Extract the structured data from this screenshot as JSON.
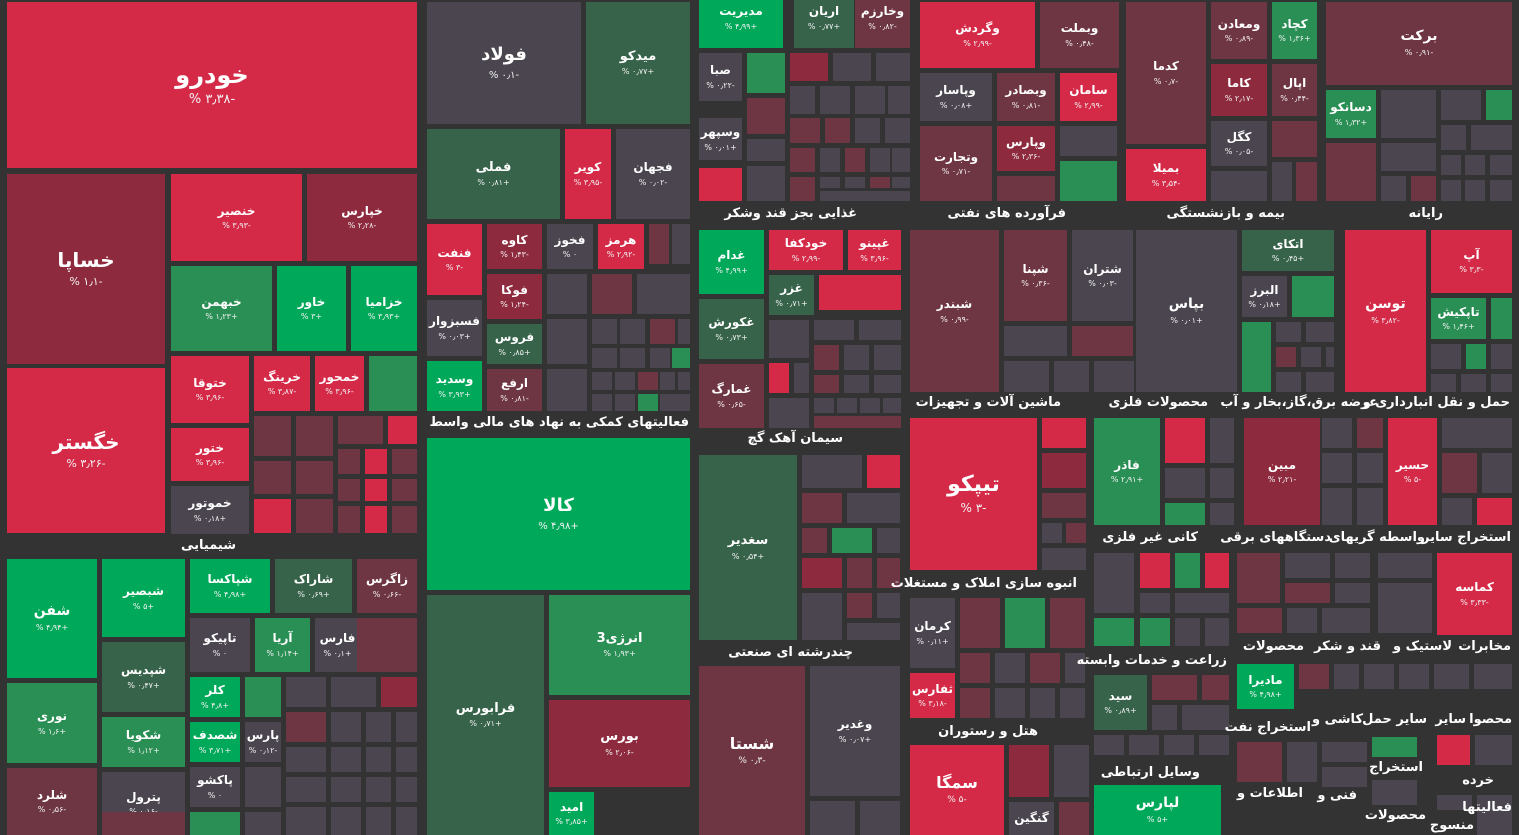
{
  "chart_data": {
    "type": "treemap",
    "colors": {
      "strong_pos": "#00a85a",
      "mid_pos": "#2a8f55",
      "weak_pos": "#36634a",
      "neutral": "#4a454e",
      "weak_neg": "#6e3543",
      "mid_neg": "#8e2a3e",
      "strong_neg": "#d42a48"
    },
    "sectors": [
      "غذایی بجز قند وشکر",
      "فرآورده های نفتی",
      "بیمه و بازنشستگی",
      "رایانه",
      "فعالیتهای کمکی به نهاد های مالی واسط",
      "سیمان آهک گچ",
      "ماشین آلات و تجهیزات",
      "محصولات فلزی",
      "عرضه برق،گاز،بخار و آب",
      "حمل و نقل انبارداری و",
      "شیمیایی",
      "انبوه سازی املاک و مستغلات",
      "کانی غیر فلزی",
      "دستگاههای برقی",
      "واسطه گریهای",
      "استخراج سایر",
      "چندرشته ای صنعتی",
      "زراعت و خدمات وابسته",
      "محصولات",
      "قند و شکر",
      "لاستیک و",
      "مخابرات",
      "هتل و رستوران",
      "استخراج نفت",
      "کاشی و",
      "سایر حمل",
      "سایر",
      "محصوا",
      "وسایل ارتباطی",
      "استخراج",
      "اطلاعات و",
      "فنی و",
      "خرده",
      "فعالیتها",
      "محصولات",
      "منسوج"
    ],
    "stocks": [
      {
        "name": "خودرو",
        "change": "-۳٫۳۸ %"
      },
      {
        "name": "خساپا",
        "change": "-۱٫۱ %"
      },
      {
        "name": "خگستر",
        "change": "-۳٫۲۶ %"
      },
      {
        "name": "خنصیر",
        "change": "-۳٫۹۳ %"
      },
      {
        "name": "خپارس",
        "change": "-۲٫۲۸ %"
      },
      {
        "name": "خبهمن",
        "change": "+۱٫۲۳ %"
      },
      {
        "name": "خاور",
        "change": "+۳ %"
      },
      {
        "name": "خزامیا",
        "change": "+۳٫۹۳ %"
      },
      {
        "name": "ختوقا",
        "change": "-۳٫۹۶ %"
      },
      {
        "name": "خرینگ",
        "change": "-۳٫۸۷ %"
      },
      {
        "name": "خمحور",
        "change": "-۳٫۹۶ %"
      },
      {
        "name": "ختور",
        "change": "-۳٫۹۶ %"
      },
      {
        "name": "خموتور",
        "change": "+۰٫۱۸ %"
      },
      {
        "name": "فولاد",
        "change": "-۰٫۱ %"
      },
      {
        "name": "میدکو",
        "change": "+۰٫۷۷ %"
      },
      {
        "name": "فملی",
        "change": "+۰٫۸۱ %"
      },
      {
        "name": "کویر",
        "change": "-۳٫۹۵ %"
      },
      {
        "name": "فجهان",
        "change": "-۰٫۰۲ %"
      },
      {
        "name": "فنفت",
        "change": "-۳ %"
      },
      {
        "name": "کاوه",
        "change": "-۱٫۴۳ %"
      },
      {
        "name": "فخوز",
        "change": "۰ %"
      },
      {
        "name": "هرمز",
        "change": "-۲٫۹۲ %"
      },
      {
        "name": "فوکا",
        "change": "-۱٫۲۴ %"
      },
      {
        "name": "فسبزوار",
        "change": "+۰٫۰۳ %"
      },
      {
        "name": "فروس",
        "change": "+۰٫۸۵ %"
      },
      {
        "name": "وسدید",
        "change": "+۳٫۹۳ %"
      },
      {
        "name": "ارفع",
        "change": "-۰٫۸۱ %"
      },
      {
        "name": "مدیریت",
        "change": "+۴٫۹۹ %"
      },
      {
        "name": "اریان",
        "change": "+۰٫۷۷ %"
      },
      {
        "name": "وخارزم",
        "change": "-۰٫۸۲ %"
      },
      {
        "name": "صبا",
        "change": "-۰٫۲۲ %"
      },
      {
        "name": "وسپهر",
        "change": "+۰٫۰۱ %"
      },
      {
        "name": "وگردش",
        "change": "-۲٫۹۹ %"
      },
      {
        "name": "وبملت",
        "change": "-۰٫۴۸ %"
      },
      {
        "name": "وپاسار",
        "change": "+۰٫۰۸ %"
      },
      {
        "name": "وبصادر",
        "change": "-۰٫۸۱ %"
      },
      {
        "name": "سامان",
        "change": "-۲٫۹۹ %"
      },
      {
        "name": "وتجارت",
        "change": "-۰٫۷۱ %"
      },
      {
        "name": "وپارس",
        "change": "-۲٫۳۶ %"
      },
      {
        "name": "کدما",
        "change": "-۰٫۷ %"
      },
      {
        "name": "بمیلا",
        "change": "-۳٫۵۴ %"
      },
      {
        "name": "ومعادن",
        "change": "-۰٫۸۹ %"
      },
      {
        "name": "کچاد",
        "change": "+۱٫۳۶ %"
      },
      {
        "name": "کاما",
        "change": "-۲٫۱۷ %"
      },
      {
        "name": "اپال",
        "change": "-۰٫۴۴ %"
      },
      {
        "name": "کگل",
        "change": "-۰٫۰۵ %"
      },
      {
        "name": "برکت",
        "change": "-۰٫۹۱ %"
      },
      {
        "name": "دسانکو",
        "change": "+۱٫۳۲ %"
      },
      {
        "name": "غدام",
        "change": "+۴٫۹۹ %"
      },
      {
        "name": "خودکفا",
        "change": "-۲٫۹۹ %"
      },
      {
        "name": "غپینو",
        "change": "-۳٫۹۶ %"
      },
      {
        "name": "غزر",
        "change": "+۰٫۷۱ %"
      },
      {
        "name": "غکورش",
        "change": "+۰٫۷۳ %"
      },
      {
        "name": "غمارگ",
        "change": "-۰٫۶۵ %"
      },
      {
        "name": "شبندر",
        "change": "-۰٫۹۹ %"
      },
      {
        "name": "شپنا",
        "change": "-۰٫۳۶ %"
      },
      {
        "name": "شتران",
        "change": "-۰٫۰۳ %"
      },
      {
        "name": "بپاس",
        "change": "+۰٫۰۱ %"
      },
      {
        "name": "اتکای",
        "change": "+۰٫۴۵ %"
      },
      {
        "name": "البرز",
        "change": "+۰٫۱۸ %"
      },
      {
        "name": "توسن",
        "change": "-۳٫۸۲ %"
      },
      {
        "name": "آپ",
        "change": "-۳٫۳ %"
      },
      {
        "name": "تاپکیش",
        "change": "+۱٫۴۶ %"
      },
      {
        "name": "کالا",
        "change": "+۴٫۹۸ %"
      },
      {
        "name": "فرابورس",
        "change": "+۰٫۷۱ %"
      },
      {
        "name": "انرژی3",
        "change": "+۱٫۹۳ %"
      },
      {
        "name": "بورس",
        "change": "-۲٫۰۶ %"
      },
      {
        "name": "امید",
        "change": "+۳٫۸۵ %"
      },
      {
        "name": "سغدیر",
        "change": "+۰٫۵۴ %"
      },
      {
        "name": "شستا",
        "change": "-۰٫۳ %"
      },
      {
        "name": "وغدیر",
        "change": "+۰٫۰۷ %"
      },
      {
        "name": "تیپکو",
        "change": "-۳ %"
      },
      {
        "name": "فاذر",
        "change": "+۲٫۹۱ %"
      },
      {
        "name": "مبین",
        "change": "-۲٫۲۱ %"
      },
      {
        "name": "حسیر",
        "change": "-۵ %"
      },
      {
        "name": "کرمان",
        "change": "+۰٫۱۱ %"
      },
      {
        "name": "ثفارس",
        "change": "-۳٫۱۸ %"
      },
      {
        "name": "سمگا",
        "change": "-۵ %"
      },
      {
        "name": "گنگین",
        "change": ""
      },
      {
        "name": "سید",
        "change": "+۰٫۸۹ %"
      },
      {
        "name": "لپارس",
        "change": "+۵ %"
      },
      {
        "name": "مادیرا",
        "change": "+۴٫۹۸ %"
      },
      {
        "name": "کماسه",
        "change": "-۳٫۳۳ %"
      },
      {
        "name": "شفن",
        "change": "+۴٫۹۴ %"
      },
      {
        "name": "شبصیر",
        "change": "+۵ %"
      },
      {
        "name": "شپاکسا",
        "change": "+۴٫۹۸ %"
      },
      {
        "name": "شاراک",
        "change": "+۰٫۶۹ %"
      },
      {
        "name": "زاگرس",
        "change": "-۰٫۶۶ %"
      },
      {
        "name": "تاپیکو",
        "change": "۰ %"
      },
      {
        "name": "آریا",
        "change": "+۱٫۱۴ %"
      },
      {
        "name": "فارس",
        "change": "+۰٫۱ %"
      },
      {
        "name": "شپدیس",
        "change": "+۰٫۴۷ %"
      },
      {
        "name": "کلر",
        "change": "+۴٫۸ %"
      },
      {
        "name": "نوری",
        "change": "+۱٫۶ %"
      },
      {
        "name": "شکویا",
        "change": "+۱٫۱۲ %"
      },
      {
        "name": "شصدف",
        "change": "+۳٫۷۱ %"
      },
      {
        "name": "پارس",
        "change": "-۰٫۱۲ %"
      },
      {
        "name": "پاکشو",
        "change": "۰ %"
      },
      {
        "name": "شلرد",
        "change": "-۰٫۵۶ %"
      },
      {
        "name": "پترول",
        "change": "-۰٫۱۶ %"
      }
    ]
  }
}
